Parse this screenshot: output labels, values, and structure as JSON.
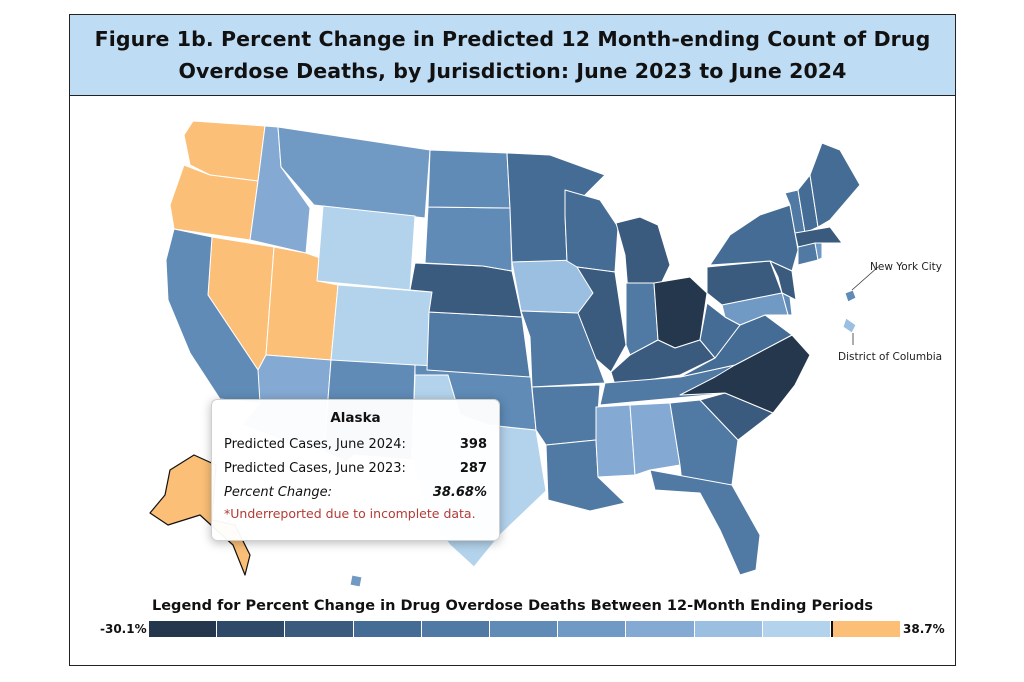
{
  "title": {
    "line1": "Figure 1b. Percent Change in Predicted 12 Month-ending Count of Drug",
    "line2": "Overdose Deaths, by Jurisdiction: June 2023 to June 2024"
  },
  "tooltip": {
    "jurisdiction": "Alaska",
    "rows": [
      {
        "label": "Predicted Cases, June 2024:",
        "value": "398"
      },
      {
        "label": "Predicted Cases, June 2023:",
        "value": "287"
      },
      {
        "label": "Percent Change:",
        "value": "38.68%"
      }
    ],
    "note": "*Underreported due to incomplete data."
  },
  "callouts": {
    "nyc": "New York City",
    "dc": "District of Columbia"
  },
  "legend": {
    "title": "Legend for Percent Change in Drug Overdose Deaths Between 12-Month Ending Periods",
    "min_label": "-30.1%",
    "max_label": "38.7%",
    "bins": [
      "#24374d",
      "#2f4a68",
      "#3a5a7e",
      "#456c94",
      "#5079a3",
      "#5f8bb6",
      "#7099c4",
      "#84a9d2",
      "#9bbfe0",
      "#b3d3ec",
      "#fbbf77"
    ],
    "zero_marker_before_bin": 10
  },
  "chart_data": {
    "type": "choropleth",
    "title": "Figure 1b. Percent Change in Predicted 12 Month-ending Count of Drug Overdose Deaths, by Jurisdiction: June 2023 to June 2024",
    "legend_title": "Legend for Percent Change in Drug Overdose Deaths Between 12-Month Ending Periods",
    "range": [
      -30.1,
      38.7
    ],
    "bin_count": 11,
    "highlighted": {
      "jurisdiction": "Alaska",
      "june_2024": 398,
      "june_2023": 287,
      "percent_change": 38.68,
      "underreported": true
    },
    "jurisdictions": [
      {
        "id": "WA",
        "bin": 10
      },
      {
        "id": "OR",
        "bin": 10
      },
      {
        "id": "NV",
        "bin": 10
      },
      {
        "id": "UT",
        "bin": 10
      },
      {
        "id": "AK",
        "bin": 10
      },
      {
        "id": "CA",
        "bin": 5
      },
      {
        "id": "ID",
        "bin": 7
      },
      {
        "id": "MT",
        "bin": 6
      },
      {
        "id": "WY",
        "bin": 9
      },
      {
        "id": "CO",
        "bin": 9
      },
      {
        "id": "AZ",
        "bin": 7
      },
      {
        "id": "NM",
        "bin": 5
      },
      {
        "id": "TX",
        "bin": 9
      },
      {
        "id": "OK",
        "bin": 5
      },
      {
        "id": "KS",
        "bin": 4
      },
      {
        "id": "NE",
        "bin": 2
      },
      {
        "id": "SD",
        "bin": 5
      },
      {
        "id": "ND",
        "bin": 5
      },
      {
        "id": "MN",
        "bin": 3
      },
      {
        "id": "IA",
        "bin": 8
      },
      {
        "id": "MO",
        "bin": 4
      },
      {
        "id": "AR",
        "bin": 4
      },
      {
        "id": "LA",
        "bin": 4
      },
      {
        "id": "WI",
        "bin": 3
      },
      {
        "id": "IL",
        "bin": 2
      },
      {
        "id": "MI",
        "bin": 2
      },
      {
        "id": "IN",
        "bin": 4
      },
      {
        "id": "OH",
        "bin": 0
      },
      {
        "id": "KY",
        "bin": 2
      },
      {
        "id": "TN",
        "bin": 4
      },
      {
        "id": "MS",
        "bin": 7
      },
      {
        "id": "AL",
        "bin": 7
      },
      {
        "id": "GA",
        "bin": 4
      },
      {
        "id": "FL",
        "bin": 4
      },
      {
        "id": "SC",
        "bin": 2
      },
      {
        "id": "NC",
        "bin": 0
      },
      {
        "id": "VA",
        "bin": 3
      },
      {
        "id": "WV",
        "bin": 3
      },
      {
        "id": "PA",
        "bin": 2
      },
      {
        "id": "NY",
        "bin": 3
      },
      {
        "id": "VT",
        "bin": 4
      },
      {
        "id": "NH",
        "bin": 3
      },
      {
        "id": "ME",
        "bin": 3
      },
      {
        "id": "MA",
        "bin": 2
      },
      {
        "id": "CT",
        "bin": 4
      },
      {
        "id": "RI",
        "bin": 6
      },
      {
        "id": "NJ",
        "bin": 2
      },
      {
        "id": "DE",
        "bin": 5
      },
      {
        "id": "MD",
        "bin": 6
      },
      {
        "id": "HI",
        "bin": 6
      },
      {
        "id": "NYC",
        "bin": 5
      },
      {
        "id": "DC",
        "bin": 8
      }
    ]
  }
}
